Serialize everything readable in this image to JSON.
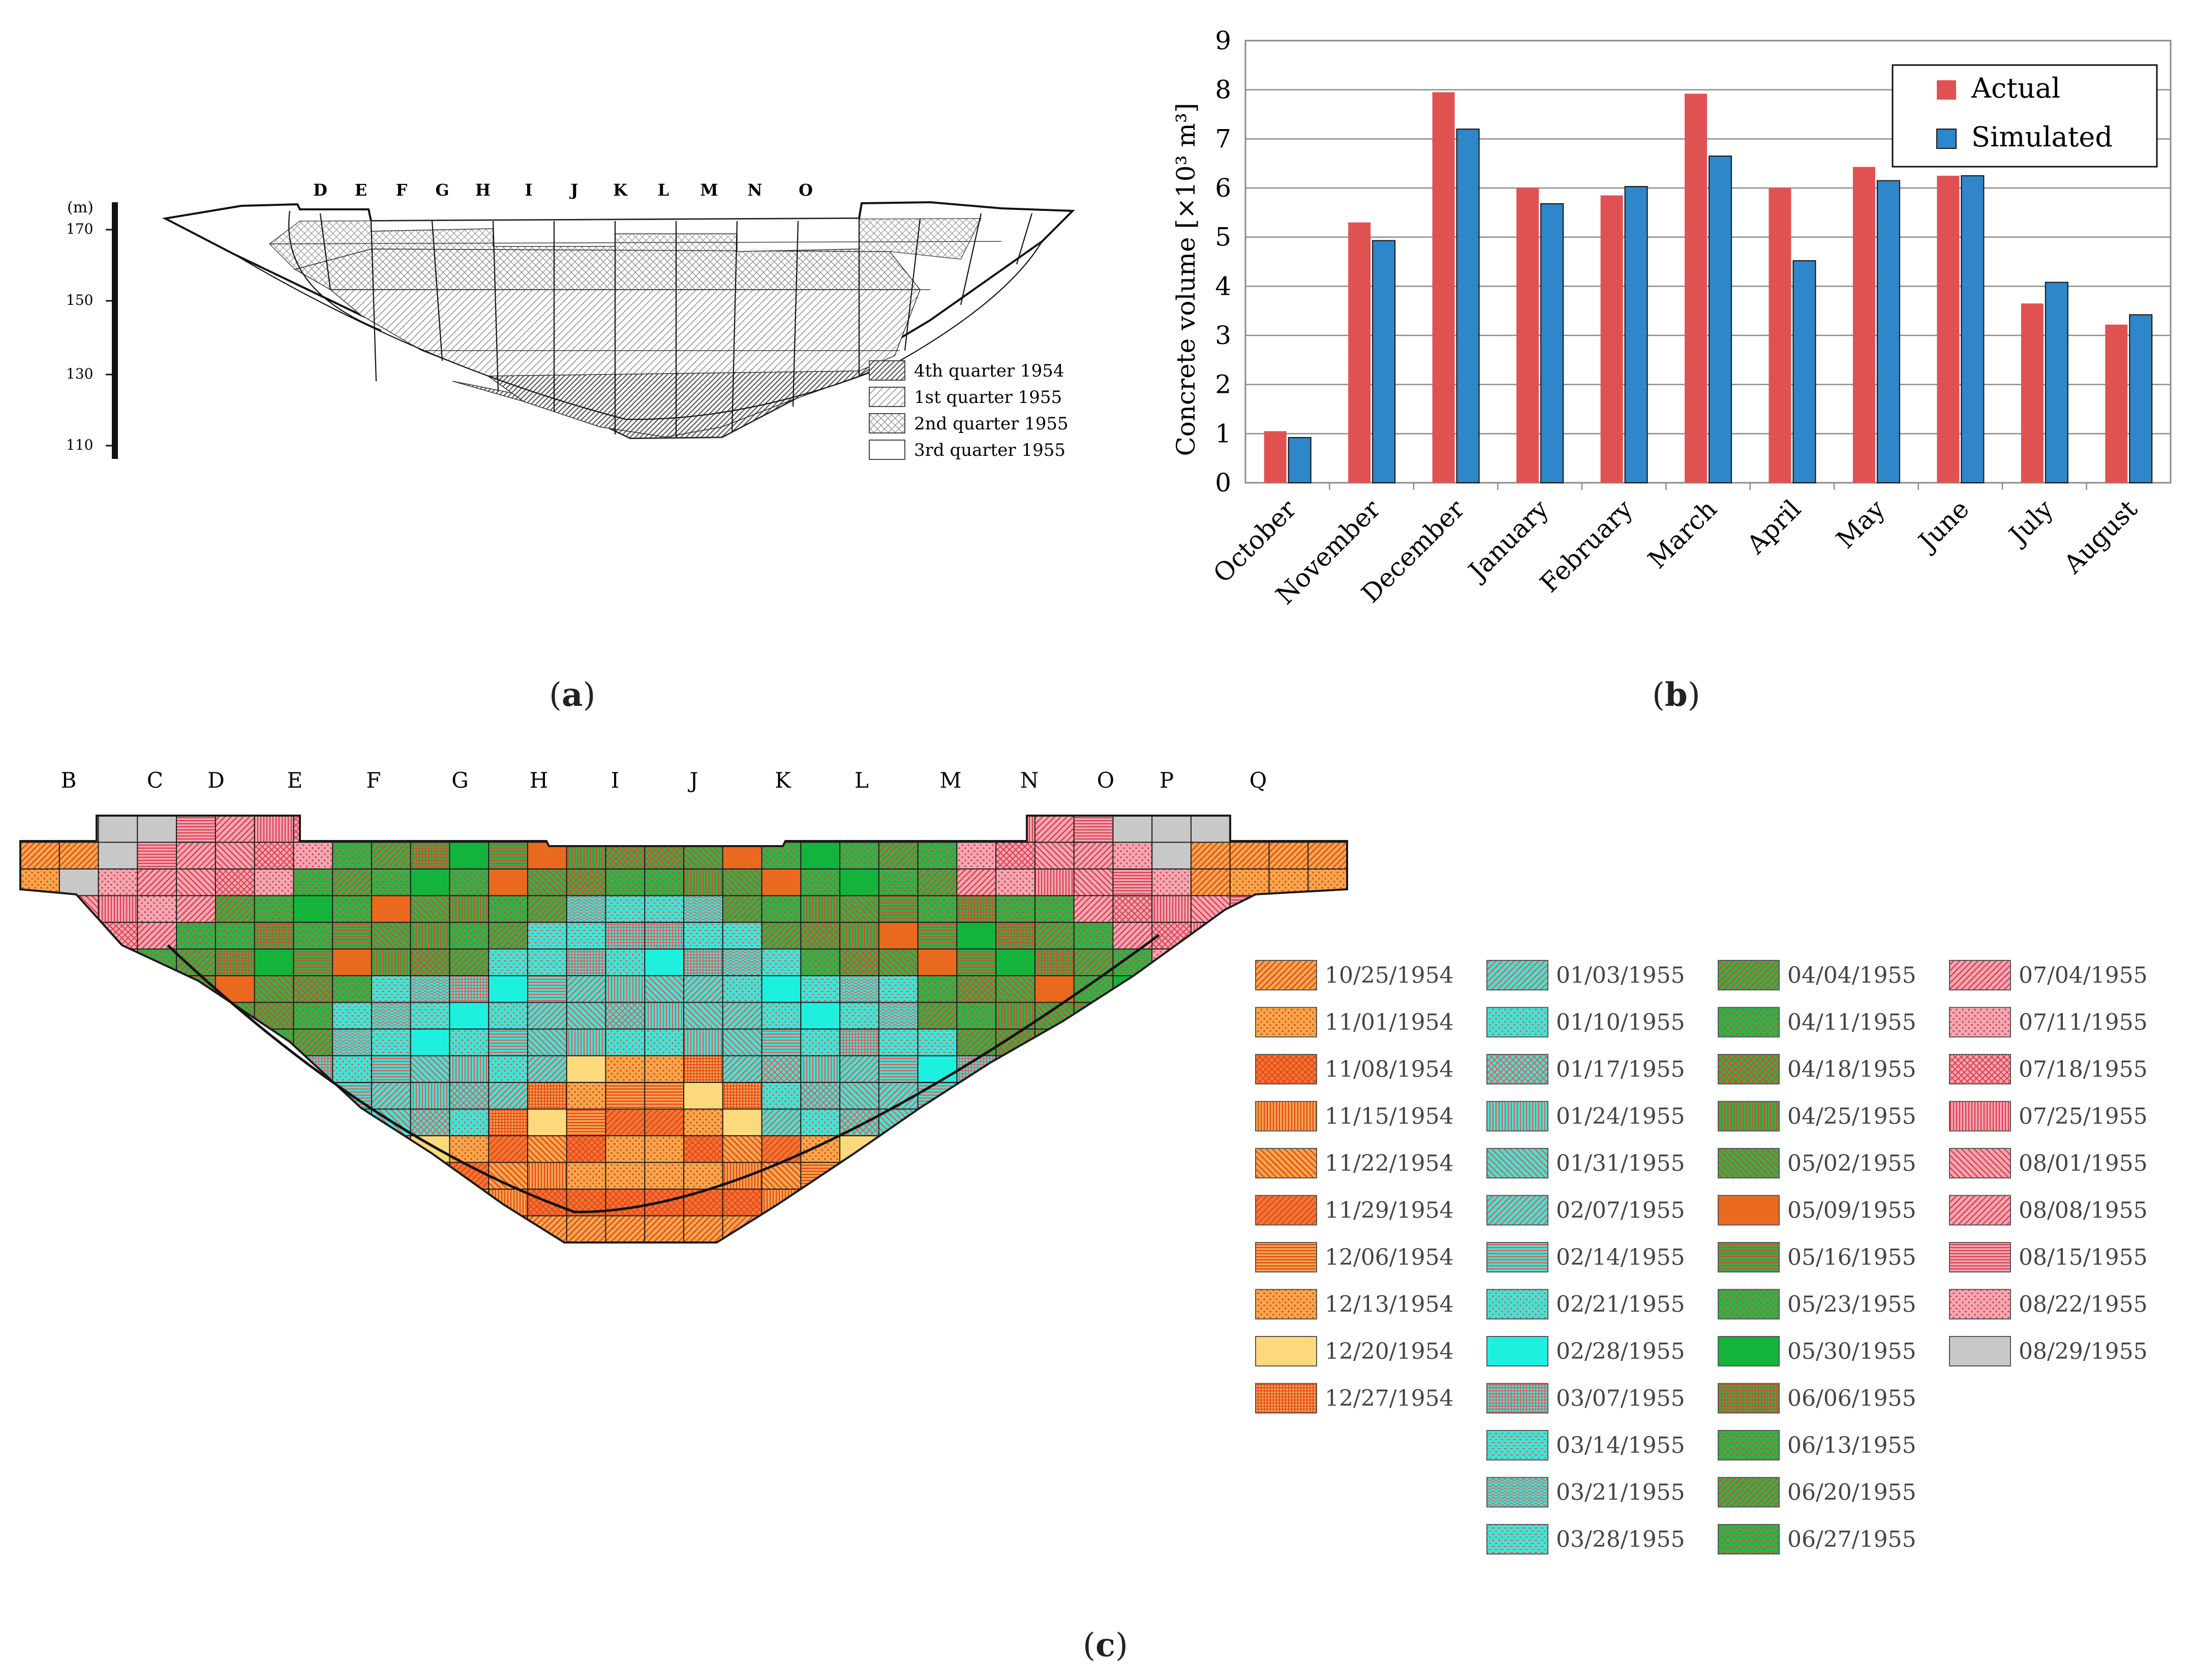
{
  "captions": {
    "a": {
      "open": "(",
      "letter": "a",
      "close": ")"
    },
    "b": {
      "open": "(",
      "letter": "b",
      "close": ")"
    },
    "c": {
      "open": "(",
      "letter": "c",
      "close": ")"
    }
  },
  "panel_a": {
    "unit": "(m)",
    "elevation_ticks": [
      "170",
      "150",
      "130",
      "110"
    ],
    "block_labels": [
      "D",
      "E",
      "F",
      "G",
      "H",
      "I",
      "J",
      "K",
      "L",
      "M",
      "N",
      "O"
    ],
    "legend": [
      {
        "label": "4th quarter 1954",
        "pattern": "dense-diagonal"
      },
      {
        "label": "1st quarter 1955",
        "pattern": "diagonal"
      },
      {
        "label": "2nd quarter 1955",
        "pattern": "crosshatch"
      },
      {
        "label": "3rd quarter 1955",
        "pattern": "blank"
      }
    ]
  },
  "chart_data": {
    "type": "bar",
    "categories": [
      "October",
      "November",
      "December",
      "January",
      "February",
      "March",
      "April",
      "May",
      "June",
      "July",
      "August"
    ],
    "series": [
      {
        "name": "Actual",
        "color": "#e05252",
        "values": [
          1.05,
          5.3,
          7.95,
          6.0,
          5.85,
          7.92,
          6.0,
          6.43,
          6.25,
          3.65,
          3.22
        ]
      },
      {
        "name": "Simulated",
        "color": "#2f86c8",
        "values": [
          0.92,
          4.93,
          7.2,
          5.68,
          6.03,
          6.65,
          4.52,
          6.15,
          6.25,
          4.08,
          3.42
        ]
      }
    ],
    "ylabel": "Concrete volume [×10³ m³]",
    "ylim": [
      0,
      9
    ],
    "yticks": [
      0,
      1,
      2,
      3,
      4,
      5,
      6,
      7,
      8,
      9
    ],
    "grid": true,
    "legend_position": "top-right"
  },
  "panel_c": {
    "block_labels": [
      "B",
      "C",
      "D",
      "E",
      "F",
      "G",
      "H",
      "I",
      "J",
      "K",
      "L",
      "M",
      "N",
      "O",
      "P",
      "Q"
    ],
    "legend_columns": [
      [
        {
          "date": "10/25/1954",
          "color": "#f5a84a",
          "pattern": "diag"
        },
        {
          "date": "11/01/1954",
          "color": "#f5a84a",
          "pattern": "dots"
        },
        {
          "date": "11/08/1954",
          "color": "#f07830",
          "pattern": "cross"
        },
        {
          "date": "11/15/1954",
          "color": "#f5a84a",
          "pattern": "vert"
        },
        {
          "date": "11/22/1954",
          "color": "#f5a84a",
          "pattern": "diag2"
        },
        {
          "date": "11/29/1954",
          "color": "#f07830",
          "pattern": "diag"
        },
        {
          "date": "12/06/1954",
          "color": "#f5a84a",
          "pattern": "horiz"
        },
        {
          "date": "12/13/1954",
          "color": "#f5a84a",
          "pattern": "dots"
        },
        {
          "date": "12/20/1954",
          "color": "#fcd97a",
          "pattern": "none"
        },
        {
          "date": "12/27/1954",
          "color": "#f5a84a",
          "pattern": "grid"
        }
      ],
      [
        {
          "date": "01/03/1955",
          "color": "#3ee6d6",
          "pattern": "diag"
        },
        {
          "date": "01/10/1955",
          "color": "#3ee6d6",
          "pattern": "dots"
        },
        {
          "date": "01/17/1955",
          "color": "#3ee6d6",
          "pattern": "cross"
        },
        {
          "date": "01/24/1955",
          "color": "#3ee6d6",
          "pattern": "vert"
        },
        {
          "date": "01/31/1955",
          "color": "#3ee6d6",
          "pattern": "diag2"
        },
        {
          "date": "02/07/1955",
          "color": "#3ee6d6",
          "pattern": "diag"
        },
        {
          "date": "02/14/1955",
          "color": "#3ee6d6",
          "pattern": "horiz"
        },
        {
          "date": "02/21/1955",
          "color": "#3ee6d6",
          "pattern": "dots"
        },
        {
          "date": "02/28/1955",
          "color": "#1ef0e0",
          "pattern": "none"
        },
        {
          "date": "03/07/1955",
          "color": "#3ee6d6",
          "pattern": "grid"
        },
        {
          "date": "03/14/1955",
          "color": "#3ee6d6",
          "pattern": "dash"
        },
        {
          "date": "03/21/1955",
          "color": "#3ee6d6",
          "pattern": "wave"
        },
        {
          "date": "03/28/1955",
          "color": "#3ee6d6",
          "pattern": "dash"
        }
      ],
      [
        {
          "date": "04/04/1955",
          "color": "#2fb24a",
          "pattern": "diag"
        },
        {
          "date": "04/11/1955",
          "color": "#2fb24a",
          "pattern": "dots"
        },
        {
          "date": "04/18/1955",
          "color": "#2fb24a",
          "pattern": "cross"
        },
        {
          "date": "04/25/1955",
          "color": "#2fb24a",
          "pattern": "vert"
        },
        {
          "date": "05/02/1955",
          "color": "#2fb24a",
          "pattern": "diag2"
        },
        {
          "date": "05/09/1955",
          "color": "#e96a1e",
          "pattern": "none"
        },
        {
          "date": "05/16/1955",
          "color": "#2fb24a",
          "pattern": "horiz"
        },
        {
          "date": "05/23/1955",
          "color": "#2fb24a",
          "pattern": "dots"
        },
        {
          "date": "05/30/1955",
          "color": "#14b43c",
          "pattern": "none"
        },
        {
          "date": "06/06/1955",
          "color": "#2fb24a",
          "pattern": "grid"
        },
        {
          "date": "06/13/1955",
          "color": "#2fb24a",
          "pattern": "dash"
        },
        {
          "date": "06/20/1955",
          "color": "#2fb24a",
          "pattern": "diag"
        },
        {
          "date": "06/27/1955",
          "color": "#2fb24a",
          "pattern": "dash"
        }
      ],
      [
        {
          "date": "07/04/1955",
          "color": "#f2a8b2",
          "pattern": "diag"
        },
        {
          "date": "07/11/1955",
          "color": "#f2a8b2",
          "pattern": "dots"
        },
        {
          "date": "07/18/1955",
          "color": "#f2a8b2",
          "pattern": "cross"
        },
        {
          "date": "07/25/1955",
          "color": "#f2a8b2",
          "pattern": "vert"
        },
        {
          "date": "08/01/1955",
          "color": "#f2a8b2",
          "pattern": "diag2"
        },
        {
          "date": "08/08/1955",
          "color": "#f2a8b2",
          "pattern": "diag"
        },
        {
          "date": "08/15/1955",
          "color": "#f2a8b2",
          "pattern": "horiz"
        },
        {
          "date": "08/22/1955",
          "color": "#f2a8b2",
          "pattern": "dots"
        },
        {
          "date": "08/29/1955",
          "color": "#c8c8c8",
          "pattern": "none"
        }
      ]
    ]
  }
}
